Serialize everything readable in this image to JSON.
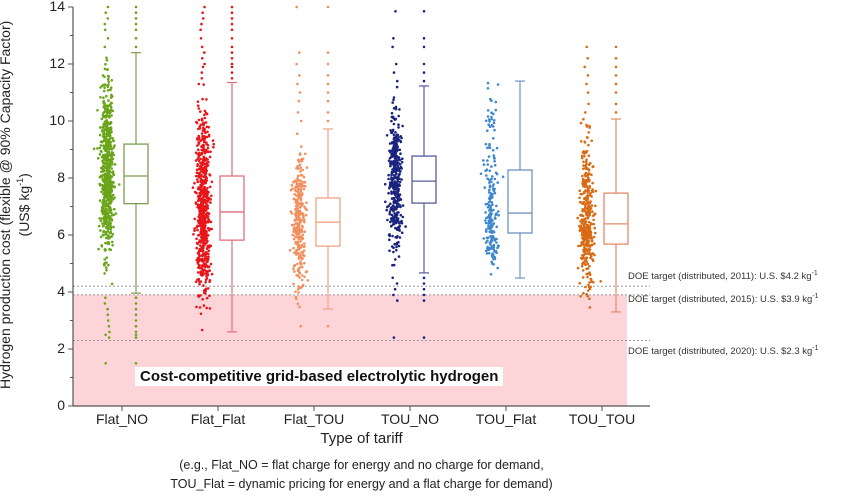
{
  "chart_data": {
    "type": "box+scatter",
    "xlabel": "Type of tariff",
    "xlabel_note_line1": "(e.g., Flat_NO = flat charge for energy and no charge for demand,",
    "xlabel_note_line2": "TOU_Flat = dynamic pricing for energy and a flat charge for demand)",
    "ylabel_line1": "Hydrogen production cost (flexible @ 90% Capacity Factor)",
    "ylabel_line2": "(US$ kg",
    "ylabel_sup": "-1",
    "ylabel_close": ")",
    "ylim": [
      0,
      14
    ],
    "yticks": [
      "0",
      "2",
      "4",
      "6",
      "8",
      "10",
      "12",
      "14"
    ],
    "categories": [
      "Flat_NO",
      "Flat_Flat",
      "Flat_TOU",
      "TOU_NO",
      "TOU_Flat",
      "TOU_TOU"
    ],
    "series": [
      {
        "name": "Flat_NO",
        "color": "#6aa51a",
        "box_color": "#7d9c52",
        "density": 1.0,
        "q1": 7.1,
        "median": 8.07,
        "q3": 9.19,
        "whisker_low": 3.96,
        "whisker_high": 12.4,
        "data_min": 1.5,
        "data_max": 14.0,
        "outliers": [
          1.5,
          2.4,
          2.5,
          2.6,
          2.8,
          3.0,
          3.2,
          3.4,
          3.6,
          3.8,
          12.6,
          12.9,
          13.2,
          13.4,
          13.6,
          13.8,
          14.0
        ]
      },
      {
        "name": "Flat_Flat",
        "color": "#e8161a",
        "box_color": "#e06f80",
        "density": 0.95,
        "q1": 5.82,
        "median": 6.81,
        "q3": 8.07,
        "whisker_low": 2.6,
        "whisker_high": 11.35,
        "data_min": 2.6,
        "data_max": 14.0,
        "outliers": [
          11.5,
          11.7,
          11.9,
          12.0,
          12.2,
          12.4,
          12.6,
          12.9,
          13.2,
          13.4,
          13.6,
          13.8,
          14.0
        ]
      },
      {
        "name": "Flat_TOU",
        "color": "#f29060",
        "box_color": "#f0a585",
        "density": 0.45,
        "q1": 5.61,
        "median": 6.45,
        "q3": 7.3,
        "whisker_low": 3.4,
        "whisker_high": 9.72,
        "data_min": 2.8,
        "data_max": 14.0,
        "outliers": [
          2.8,
          10.0,
          10.3,
          10.7,
          11.0,
          11.3,
          11.6,
          12.0,
          12.4,
          14.0
        ]
      },
      {
        "name": "TOU_NO",
        "color": "#1a237e",
        "box_color": "#5a5a9e",
        "density": 0.55,
        "q1": 7.12,
        "median": 7.89,
        "q3": 8.77,
        "whisker_low": 4.67,
        "whisker_high": 11.23,
        "data_min": 2.4,
        "data_max": 13.85,
        "outliers": [
          2.4,
          3.7,
          3.9,
          4.1,
          4.3,
          4.5,
          11.4,
          11.7,
          12.0,
          12.6,
          12.9,
          13.85
        ]
      },
      {
        "name": "TOU_Flat",
        "color": "#3f87cf",
        "box_color": "#6f96c2",
        "density": 0.3,
        "q1": 6.07,
        "median": 6.77,
        "q3": 8.28,
        "whisker_low": 4.49,
        "whisker_high": 11.4,
        "data_min": 4.49,
        "data_max": 11.4,
        "outliers": []
      },
      {
        "name": "TOU_TOU",
        "color": "#d96b14",
        "box_color": "#e48a6a",
        "density": 0.55,
        "q1": 5.68,
        "median": 6.39,
        "q3": 7.47,
        "whisker_low": 3.3,
        "whisker_high": 10.07,
        "data_min": 3.3,
        "data_max": 12.6,
        "outliers": [
          10.3,
          10.6,
          11.0,
          11.3,
          11.6,
          11.9,
          12.2,
          12.6
        ]
      }
    ],
    "reference_lines": [
      {
        "value": 4.2,
        "label": "DOE target (distributed, 2011): U.S. $4.2 kg",
        "sup": "-1"
      },
      {
        "value": 3.9,
        "label": "DOE target (distributed, 2015): U.S. $3.9 kg",
        "sup": "-1"
      },
      {
        "value": 2.3,
        "label": "DOE target (distributed, 2020): U.S. $2.3 kg",
        "sup": "-1"
      }
    ],
    "shaded_region": {
      "from": 0,
      "to": 3.9,
      "color": "#fdd5d8",
      "label": "Cost-competitive grid-based electrolytic hydrogen"
    },
    "grid": false,
    "legend": "none"
  }
}
